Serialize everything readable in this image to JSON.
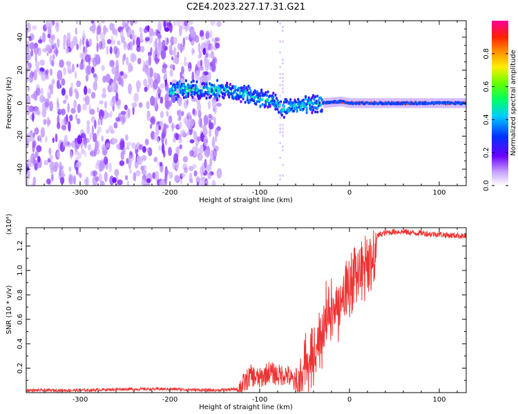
{
  "figure": {
    "title": "C2E4.2023.227.17.31.G21"
  },
  "chart_data": [
    {
      "type": "heatmap",
      "title": "C2E4.2023.227.17.31.G21",
      "xlabel": "Height of straight line (km)",
      "ylabel": "Frequency (Hz)",
      "xlim": [
        -360,
        130
      ],
      "ylim": [
        -50,
        50
      ],
      "x_ticks": [
        -300,
        -200,
        -100,
        0,
        100
      ],
      "y_ticks": [
        -40,
        -20,
        0,
        20,
        40
      ],
      "x_tick_labels": [
        "-300",
        "-200",
        "-100",
        "0",
        "100"
      ],
      "y_tick_labels": [
        "-40",
        "-20",
        "0",
        "20",
        "40"
      ],
      "colorscale": "rainbow (purple-blue-cyan-green-yellow-red-magenta)",
      "colorbar": {
        "label": "Normalized spectral amplitude",
        "range": [
          0.0,
          1.0
        ],
        "ticks": [
          0.0,
          0.2,
          0.4,
          0.6,
          0.8
        ],
        "tick_labels": [
          "0.0",
          "0.2",
          "0.4",
          "0.6",
          "0.8"
        ]
      },
      "description_points": {
        "noise_region_x": [
          -360,
          -145
        ],
        "signal_ridge": {
          "x": [
            -195,
            -140,
            -120,
            -100,
            -85,
            -75,
            -60,
            -45,
            -30,
            -10,
            0,
            20,
            50,
            80,
            100,
            130
          ],
          "y": [
            8,
            8,
            6,
            3,
            1,
            -3,
            -2,
            -1,
            0,
            1,
            0,
            0,
            0,
            0,
            0,
            0
          ]
        }
      }
    },
    {
      "type": "line",
      "xlabel": "Height of straight line (km)",
      "ylabel": "SNR (10 * v/v)",
      "y_multiplier": "(x10⁴)",
      "xlim": [
        -360,
        130
      ],
      "ylim": [
        0,
        1.35
      ],
      "x_ticks": [
        -300,
        -200,
        -100,
        0,
        100
      ],
      "y_ticks": [
        0.2,
        0.4,
        0.6,
        0.8,
        1.0,
        1.2
      ],
      "x_tick_labels": [
        "-300",
        "-200",
        "-100",
        "0",
        "100"
      ],
      "y_tick_labels": [
        "0.2",
        "0.4",
        "0.6",
        "0.8",
        "1.0",
        "1.2"
      ],
      "color": "#ee3333",
      "series": [
        {
          "x": [
            -360,
            -300,
            -250,
            -200,
            -150,
            -125,
            -120,
            -110,
            -100,
            -90,
            -80,
            -70,
            -60,
            -55,
            -50,
            -45,
            -40,
            -35,
            -30,
            -25,
            -20,
            -15,
            -10,
            -5,
            0,
            5,
            10,
            15,
            20,
            25,
            30,
            35,
            40,
            50,
            60,
            70,
            80,
            90,
            100,
            110,
            120,
            130
          ],
          "values": [
            0.02,
            0.02,
            0.03,
            0.03,
            0.02,
            0.03,
            0.06,
            0.15,
            0.12,
            0.18,
            0.15,
            0.16,
            0.08,
            0.2,
            0.35,
            0.3,
            0.5,
            0.55,
            0.6,
            0.8,
            0.75,
            0.9,
            0.8,
            1.0,
            0.95,
            1.05,
            1.1,
            1.15,
            1.2,
            1.25,
            1.28,
            1.3,
            1.31,
            1.32,
            1.32,
            1.31,
            1.31,
            1.3,
            1.3,
            1.29,
            1.29,
            1.28
          ]
        }
      ]
    }
  ]
}
